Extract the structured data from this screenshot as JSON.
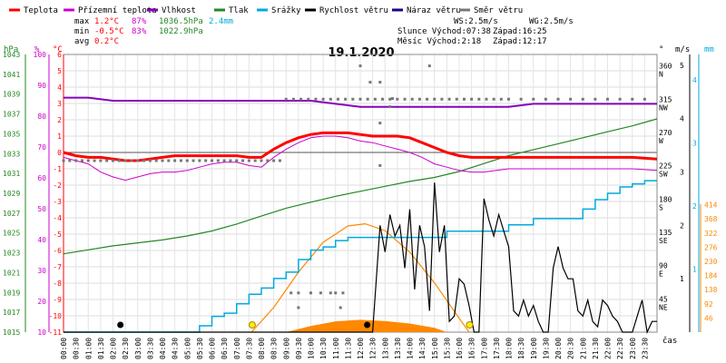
{
  "chart_data": {
    "type": "line",
    "title": "19.1.2020",
    "legend": [
      {
        "name": "Teplota",
        "color": "#ff0000"
      },
      {
        "name": "Přízemní teplota",
        "color": "#cc00cc"
      },
      {
        "name": "Vlhkost",
        "color": "#8800bb"
      },
      {
        "name": "Tlak",
        "color": "#228822"
      },
      {
        "name": "Srážky",
        "color": "#00aadd"
      },
      {
        "name": "Rychlost větru",
        "color": "#000000"
      },
      {
        "name": "Náraz větru",
        "color": "#220088"
      },
      {
        "name": "Směr větru",
        "color": "#777777"
      }
    ],
    "stats": {
      "max_label": "max",
      "min_label": "min",
      "avg_label": "avg",
      "max_temp": "1.2°C",
      "max_hum": "87%",
      "max_press": "1036.5hPa",
      "max_rain": "2.4mm",
      "min_temp": "-0.5°C",
      "min_hum": "83%",
      "min_press": "1022.9hPa",
      "avg_temp": "0.2°C"
    },
    "info": {
      "ws": "WS:2.5m/s",
      "wg": "WG:2.5m/s",
      "sun_rise": "Slunce Východ:07:38",
      "sun_set": "Západ:16:25",
      "moon_rise": "Měsíc  Východ:2:18",
      "moon_set": "Západ:12:17"
    },
    "axes": {
      "hpa_unit": "hPa",
      "pct_unit": "%",
      "temp_unit": "°C",
      "hpa_ticks": [
        "1043",
        "1041",
        "1039",
        "1037",
        "1035",
        "1033",
        "1031",
        "1029",
        "1027",
        "1025",
        "1023",
        "1021",
        "1019",
        "1017",
        "1015"
      ],
      "pct_ticks": [
        "100",
        "90",
        "80",
        "70",
        "60",
        "50",
        "40",
        "30",
        "20",
        "10"
      ],
      "temp_ticks": [
        "6",
        "5",
        "4",
        "3",
        "2",
        "1",
        "0",
        "-1",
        "-2",
        "-3",
        "-4",
        "-5",
        "-6",
        "-7",
        "-8",
        "-9",
        "-10",
        "-11"
      ],
      "temp_range": [
        -11,
        6
      ],
      "dir_unit": "°",
      "dir_ticks": [
        {
          "deg": "360",
          "label": "N"
        },
        {
          "deg": "315",
          "label": "NW"
        },
        {
          "deg": "270",
          "label": "W"
        },
        {
          "deg": "225",
          "label": "SW"
        },
        {
          "deg": "180",
          "label": "S"
        },
        {
          "deg": "135",
          "label": "SE"
        },
        {
          "deg": "90",
          "label": "E"
        },
        {
          "deg": "45",
          "label": "NE"
        },
        {
          "deg": "",
          "label": ""
        }
      ],
      "ms_unit": "m/s",
      "ms_ticks": [
        "5",
        "4",
        "3",
        "2",
        "1"
      ],
      "mm_unit": "mm",
      "mm_ticks": [
        "4",
        "3",
        "2",
        "1"
      ],
      "rad_ticks": [
        "414",
        "368",
        "322",
        "276",
        "230",
        "184",
        "138",
        "92",
        "46"
      ],
      "x_ticks": [
        "00:00",
        "00:30",
        "01:00",
        "01:30",
        "02:00",
        "02:30",
        "03:00",
        "03:30",
        "04:00",
        "04:30",
        "05:00",
        "05:30",
        "06:00",
        "06:30",
        "07:00",
        "07:30",
        "08:00",
        "08:30",
        "09:00",
        "09:30",
        "10:00",
        "10:30",
        "11:00",
        "11:30",
        "12:00",
        "12:30",
        "13:00",
        "13:30",
        "14:00",
        "14:30",
        "15:00",
        "15:30",
        "16:00",
        "16:30",
        "17:00",
        "17:30",
        "18:00",
        "18:30",
        "19:00",
        "19:30",
        "20:00",
        "20:30",
        "21:00",
        "21:30",
        "22:00",
        "22:30",
        "23:00",
        "23:30"
      ],
      "x_label": "čas"
    },
    "series": {
      "temperature": {
        "x": [
          0,
          0.5,
          1,
          1.5,
          2,
          2.5,
          3,
          3.5,
          4,
          4.5,
          5,
          5.5,
          6,
          6.5,
          7,
          7.5,
          8,
          8.5,
          9,
          9.5,
          10,
          10.5,
          11,
          11.5,
          12,
          12.5,
          13,
          13.5,
          14,
          14.5,
          15,
          15.5,
          16,
          16.5,
          17,
          17.5,
          18,
          19,
          20,
          21,
          22,
          23,
          24
        ],
        "y": [
          0,
          -0.2,
          -0.3,
          -0.3,
          -0.4,
          -0.5,
          -0.5,
          -0.4,
          -0.3,
          -0.2,
          -0.2,
          -0.2,
          -0.2,
          -0.2,
          -0.2,
          -0.3,
          -0.3,
          0.2,
          0.6,
          0.9,
          1.1,
          1.2,
          1.2,
          1.2,
          1.1,
          1.0,
          1.0,
          1.0,
          0.9,
          0.6,
          0.3,
          0.0,
          -0.2,
          -0.3,
          -0.3,
          -0.3,
          -0.3,
          -0.3,
          -0.3,
          -0.3,
          -0.3,
          -0.3,
          -0.4
        ]
      },
      "ground_temperature": {
        "x": [
          0,
          0.5,
          1,
          1.5,
          2,
          2.5,
          3,
          3.5,
          4,
          4.5,
          5,
          5.5,
          6,
          6.5,
          7,
          7.5,
          8,
          8.5,
          9,
          9.5,
          10,
          10.5,
          11,
          11.5,
          12,
          12.5,
          13,
          13.5,
          14,
          14.5,
          15,
          15.5,
          16,
          16.5,
          17,
          17.5,
          18,
          19,
          20,
          21,
          22,
          23,
          24
        ],
        "y": [
          -0.3,
          -0.5,
          -0.7,
          -1.2,
          -1.5,
          -1.7,
          -1.5,
          -1.3,
          -1.2,
          -1.2,
          -1.1,
          -0.9,
          -0.7,
          -0.6,
          -0.6,
          -0.8,
          -0.9,
          -0.3,
          0.2,
          0.6,
          0.9,
          1.0,
          1.0,
          0.9,
          0.7,
          0.6,
          0.4,
          0.2,
          0.0,
          -0.3,
          -0.7,
          -0.9,
          -1.1,
          -1.2,
          -1.2,
          -1.1,
          -1.0,
          -1.0,
          -1.0,
          -1.0,
          -1.0,
          -1.0,
          -1.1
        ]
      },
      "humidity": {
        "x": [
          0,
          1,
          2,
          3,
          4,
          5,
          6,
          7,
          8,
          9,
          10,
          11,
          12,
          13,
          14,
          15,
          16,
          17,
          18,
          19,
          20,
          21,
          22,
          23,
          24
        ],
        "y": [
          86,
          86,
          85,
          85,
          85,
          85,
          85,
          85,
          85,
          85,
          85,
          84,
          83,
          83,
          83,
          83,
          83,
          83,
          83,
          84,
          84,
          84,
          84,
          84,
          84
        ]
      },
      "pressure": {
        "x": [
          0,
          1,
          2,
          3,
          4,
          5,
          6,
          7,
          8,
          9,
          10,
          11,
          12,
          13,
          14,
          15,
          16,
          17,
          18,
          19,
          20,
          21,
          22,
          23,
          24
        ],
        "y": [
          1022.9,
          1023.3,
          1023.7,
          1024.0,
          1024.3,
          1024.7,
          1025.2,
          1025.9,
          1026.7,
          1027.5,
          1028.1,
          1028.7,
          1029.2,
          1029.7,
          1030.2,
          1030.6,
          1031.2,
          1032.0,
          1032.8,
          1033.4,
          1034.0,
          1034.6,
          1035.2,
          1035.8,
          1036.5
        ]
      },
      "rain": {
        "x": [
          0,
          5,
          5.5,
          6,
          6.5,
          7,
          7.5,
          8,
          8.5,
          9,
          9.5,
          10,
          10.5,
          11,
          11.5,
          12,
          12.5,
          13,
          13.5,
          14,
          14.5,
          15,
          15.5,
          16,
          17,
          18,
          19,
          20,
          21,
          21.5,
          22,
          22.5,
          23,
          23.5,
          24
        ],
        "y": [
          0,
          0,
          0.1,
          0.25,
          0.3,
          0.45,
          0.6,
          0.7,
          0.85,
          0.95,
          1.15,
          1.3,
          1.35,
          1.45,
          1.5,
          1.5,
          1.5,
          1.5,
          1.5,
          1.5,
          1.5,
          1.5,
          1.6,
          1.6,
          1.6,
          1.7,
          1.8,
          1.8,
          1.95,
          2.1,
          2.2,
          2.3,
          2.35,
          2.4,
          2.4
        ]
      },
      "solar_radiation": {
        "x": [
          7.6,
          8.5,
          9.5,
          10.5,
          11.5,
          12.2,
          13,
          14,
          15,
          16,
          16.4
        ],
        "y": [
          0,
          80,
          195,
          292,
          345,
          352,
          330,
          260,
          160,
          45,
          0
        ]
      },
      "wind_speed": {
        "x": [
          0,
          12.5,
          12.8,
          13,
          13.2,
          13.4,
          13.6,
          13.8,
          14,
          14.2,
          14.4,
          14.6,
          14.8,
          15,
          15.2,
          15.4,
          15.6,
          15.8,
          16,
          16.2,
          16.4,
          16.6,
          16.8,
          17,
          17.2,
          17.4,
          17.6,
          17.8,
          18,
          18.2,
          18.4,
          18.6,
          18.8,
          19,
          19.2,
          19.4,
          19.6,
          19.8,
          20,
          20.2,
          20.4,
          20.6,
          20.8,
          21,
          21.2,
          21.4,
          21.6,
          21.8,
          22,
          22.2,
          22.4,
          22.6,
          22.8,
          23,
          23.2,
          23.4,
          23.6,
          23.8,
          24
        ],
        "y": [
          0,
          0,
          2,
          1.5,
          2.2,
          1.8,
          2.0,
          1.2,
          2.3,
          0.8,
          2.0,
          1.6,
          0.4,
          2.8,
          1.5,
          2.0,
          0.2,
          0.3,
          1.0,
          0.9,
          0.5,
          0.0,
          0.0,
          2.5,
          2.1,
          1.8,
          2.2,
          1.9,
          1.6,
          0.4,
          0.3,
          0.6,
          0.3,
          0.5,
          0.2,
          0.0,
          0.0,
          1.2,
          1.6,
          1.2,
          1.0,
          1.0,
          0.4,
          0.3,
          0.6,
          0.2,
          0.1,
          0.6,
          0.5,
          0.3,
          0.2,
          0.0,
          0.0,
          0.0,
          0.3,
          0.6,
          0.0,
          0.2,
          0.2
        ]
      },
      "wind_direction": {
        "x": [
          9,
          9.3,
          9.6,
          9.9,
          10.2,
          10.5,
          10.8,
          11.1,
          11.4,
          11.7,
          12.0,
          12.3,
          12.6,
          12.9,
          13.2,
          13.5,
          13.8,
          14.1,
          14.4,
          14.7,
          15.0,
          15.3,
          15.6,
          15.9,
          16.2,
          16.5,
          16.8,
          17.1,
          17.4,
          17.7,
          18,
          18.5,
          19,
          19.5,
          20,
          20.5,
          21,
          21.5,
          22,
          22.5,
          23,
          23.5
        ],
        "y": [
          315,
          315,
          315,
          315,
          315,
          315,
          315,
          315,
          315,
          315,
          315,
          315,
          315,
          315,
          315,
          315,
          315,
          315,
          315,
          315,
          315,
          315,
          315,
          315,
          315,
          315,
          315,
          315,
          315,
          315,
          315,
          315,
          315,
          315,
          315,
          315,
          315,
          315,
          315,
          315,
          315,
          315
        ]
      }
    }
  }
}
